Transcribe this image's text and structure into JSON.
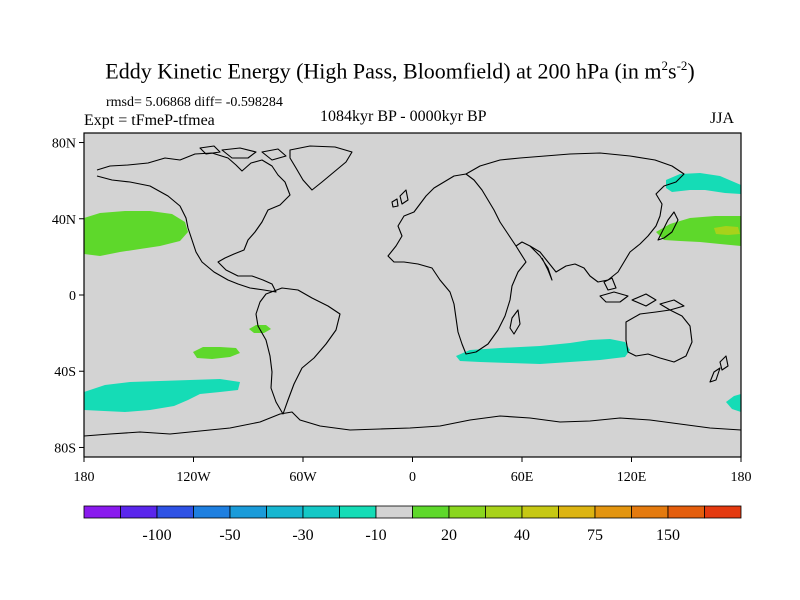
{
  "title": {
    "main": "Eddy Kinetic Energy (High Pass, Bloomfield) at 200 hPa (in m",
    "sup1": "2",
    "mid": "s",
    "sup2": "-2",
    "end": ")"
  },
  "stats": {
    "text": "rmsd= 5.06868 diff= -0.598284"
  },
  "experiment": {
    "text": "Expt = tFmeP-tfmea"
  },
  "period": {
    "text": "1084kyr BP - 0000kyr BP"
  },
  "season": {
    "text": "JJA"
  },
  "map": {
    "projection": "cylindrical equidistant",
    "lat_labels": [
      "80N",
      "40N",
      "0",
      "40S",
      "80S"
    ],
    "lat_values": [
      80,
      40,
      0,
      -40,
      -80
    ],
    "lon_labels": [
      "180",
      "120W",
      "60W",
      "0",
      "60E",
      "120E",
      "180"
    ],
    "lon_values": [
      -180,
      -120,
      -60,
      0,
      60,
      120,
      180
    ],
    "land_fill": "#d3d3d3",
    "coast_color": "#000000"
  },
  "anomaly_regions": [
    {
      "name": "north-pacific-east-positive",
      "category": "20",
      "color": "#5ed82b"
    },
    {
      "name": "north-pacific-west-positive",
      "category": "20",
      "color": "#5ed82b"
    },
    {
      "name": "north-pacific-west-core",
      "category": "40",
      "color": "#a8d21a"
    },
    {
      "name": "bering-negative",
      "category": "-10",
      "color": "#15dcb6"
    },
    {
      "name": "south-pacific-negative",
      "category": "-10",
      "color": "#15dcb6"
    },
    {
      "name": "south-pacific-small-positive",
      "category": "20",
      "color": "#5ed82b"
    },
    {
      "name": "southeast-pacific-small-positive",
      "category": "20",
      "color": "#5ed82b"
    },
    {
      "name": "southern-indian-negative",
      "category": "-10",
      "color": "#15dcb6"
    },
    {
      "name": "southwest-pacific-negative",
      "category": "-10",
      "color": "#15dcb6"
    }
  ],
  "colorbar": {
    "colors": [
      "#8a1aee",
      "#5a26ec",
      "#2e52e5",
      "#1e7fe0",
      "#1a9bd9",
      "#17b6d0",
      "#14c8c6",
      "#15dcb6",
      "#d3d3d3",
      "#5ed82b",
      "#8ad61f",
      "#a8d21a",
      "#c6c814",
      "#dcb412",
      "#e39510",
      "#e47a0e",
      "#e45e0d",
      "#e43a10"
    ],
    "labels": [
      "-100",
      "-50",
      "-30",
      "-10",
      "20",
      "40",
      "75",
      "150"
    ],
    "label_after_box": [
      1,
      3,
      5,
      7,
      9,
      11,
      13,
      15
    ]
  }
}
